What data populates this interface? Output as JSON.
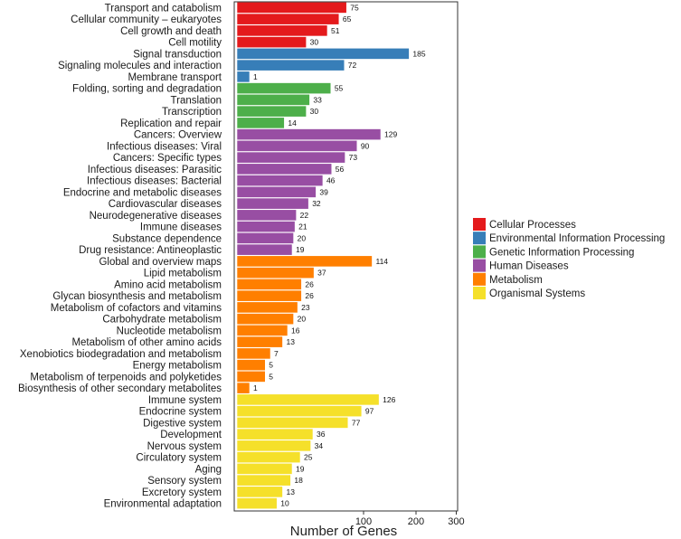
{
  "chart_data": {
    "type": "bar",
    "orientation": "horizontal",
    "xlabel": "Number of Genes",
    "ylabel": "",
    "title": "",
    "xlim": [
      0,
      300
    ],
    "scale": "sqrt",
    "xticks": [
      100,
      200,
      300
    ],
    "grid": false,
    "legend_position": "right",
    "groups": [
      {
        "name": "Cellular Processes",
        "color": "#e41a1c"
      },
      {
        "name": "Environmental Information Processing",
        "color": "#377eb8"
      },
      {
        "name": "Genetic Information Processing",
        "color": "#4daf4a"
      },
      {
        "name": "Human Diseases",
        "color": "#984ea3"
      },
      {
        "name": "Metabolism",
        "color": "#ff7f00"
      },
      {
        "name": "Organismal Systems",
        "color": "#f5e02a"
      }
    ],
    "bars": [
      {
        "category": "Transport and catabolism",
        "value": 75,
        "group": 0
      },
      {
        "category": "Cellular community – eukaryotes",
        "value": 65,
        "group": 0
      },
      {
        "category": "Cell growth and death",
        "value": 51,
        "group": 0
      },
      {
        "category": "Cell motility",
        "value": 30,
        "group": 0
      },
      {
        "category": "Signal transduction",
        "value": 185,
        "group": 1
      },
      {
        "category": "Signaling molecules and interaction",
        "value": 72,
        "group": 1
      },
      {
        "category": "Membrane transport",
        "value": 1,
        "group": 1
      },
      {
        "category": "Folding, sorting and degradation",
        "value": 55,
        "group": 2
      },
      {
        "category": "Translation",
        "value": 33,
        "group": 2
      },
      {
        "category": "Transcription",
        "value": 30,
        "group": 2
      },
      {
        "category": "Replication and repair",
        "value": 14,
        "group": 2
      },
      {
        "category": "Cancers: Overview",
        "value": 129,
        "group": 3
      },
      {
        "category": "Infectious diseases: Viral",
        "value": 90,
        "group": 3
      },
      {
        "category": "Cancers: Specific types",
        "value": 73,
        "group": 3
      },
      {
        "category": "Infectious diseases: Parasitic",
        "value": 56,
        "group": 3
      },
      {
        "category": "Infectious diseases: Bacterial",
        "value": 46,
        "group": 3
      },
      {
        "category": "Endocrine and metabolic diseases",
        "value": 39,
        "group": 3
      },
      {
        "category": "Cardiovascular diseases",
        "value": 32,
        "group": 3
      },
      {
        "category": "Neurodegenerative diseases",
        "value": 22,
        "group": 3
      },
      {
        "category": "Immune diseases",
        "value": 21,
        "group": 3
      },
      {
        "category": "Substance dependence",
        "value": 20,
        "group": 3
      },
      {
        "category": "Drug resistance: Antineoplastic",
        "value": 19,
        "group": 3
      },
      {
        "category": "Global and overview maps",
        "value": 114,
        "group": 4
      },
      {
        "category": "Lipid metabolism",
        "value": 37,
        "group": 4
      },
      {
        "category": "Amino acid metabolism",
        "value": 26,
        "group": 4
      },
      {
        "category": "Glycan biosynthesis and metabolism",
        "value": 26,
        "group": 4
      },
      {
        "category": "Metabolism of cofactors and vitamins",
        "value": 23,
        "group": 4
      },
      {
        "category": "Carbohydrate metabolism",
        "value": 20,
        "group": 4
      },
      {
        "category": "Nucleotide metabolism",
        "value": 16,
        "group": 4
      },
      {
        "category": "Metabolism of other amino acids",
        "value": 13,
        "group": 4
      },
      {
        "category": "Xenobiotics biodegradation and metabolism",
        "value": 7,
        "group": 4
      },
      {
        "category": "Energy metabolism",
        "value": 5,
        "group": 4
      },
      {
        "category": "Metabolism of terpenoids and polyketides",
        "value": 5,
        "group": 4
      },
      {
        "category": "Biosynthesis of other secondary metabolites",
        "value": 1,
        "group": 4
      },
      {
        "category": "Immune system",
        "value": 126,
        "group": 5
      },
      {
        "category": "Endocrine system",
        "value": 97,
        "group": 5
      },
      {
        "category": "Digestive system",
        "value": 77,
        "group": 5
      },
      {
        "category": "Development",
        "value": 36,
        "group": 5
      },
      {
        "category": "Nervous system",
        "value": 34,
        "group": 5
      },
      {
        "category": "Circulatory system",
        "value": 25,
        "group": 5
      },
      {
        "category": "Aging",
        "value": 19,
        "group": 5
      },
      {
        "category": "Sensory system",
        "value": 18,
        "group": 5
      },
      {
        "category": "Excretory system",
        "value": 13,
        "group": 5
      },
      {
        "category": "Environmental adaptation",
        "value": 10,
        "group": 5
      }
    ]
  }
}
